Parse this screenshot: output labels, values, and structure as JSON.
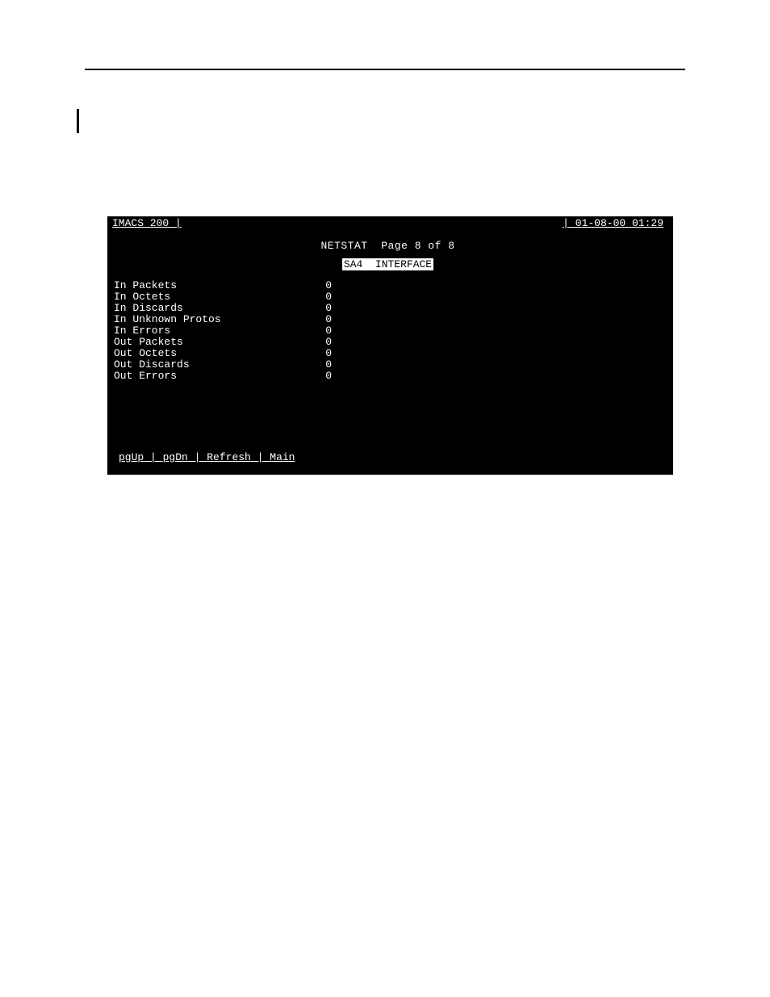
{
  "header": {
    "system_name": "IMACS_200",
    "timestamp": "01-08-00 01:29"
  },
  "screen": {
    "title": "NETSTAT",
    "page_label": "Page 8 of 8",
    "interface_label": "SA4  INTERFACE"
  },
  "stats": [
    {
      "label": "In Packets",
      "value": "0"
    },
    {
      "label": "In Octets",
      "value": "0"
    },
    {
      "label": "In Discards",
      "value": "0"
    },
    {
      "label": "In Unknown Protos",
      "value": "0"
    },
    {
      "label": "In Errors",
      "value": "0"
    },
    {
      "label": "Out Packets",
      "value": "0"
    },
    {
      "label": "Out Octets",
      "value": "0"
    },
    {
      "label": "Out Discards",
      "value": "0"
    },
    {
      "label": "Out Errors",
      "value": "0"
    }
  ],
  "menu": {
    "pgup": "pgUp",
    "pgdn": "pgDn",
    "refresh": "Refresh",
    "main": "Main"
  },
  "colors": {
    "terminal_bg": "#000000",
    "terminal_fg": "#ffffff",
    "page_bg": "#ffffff"
  }
}
